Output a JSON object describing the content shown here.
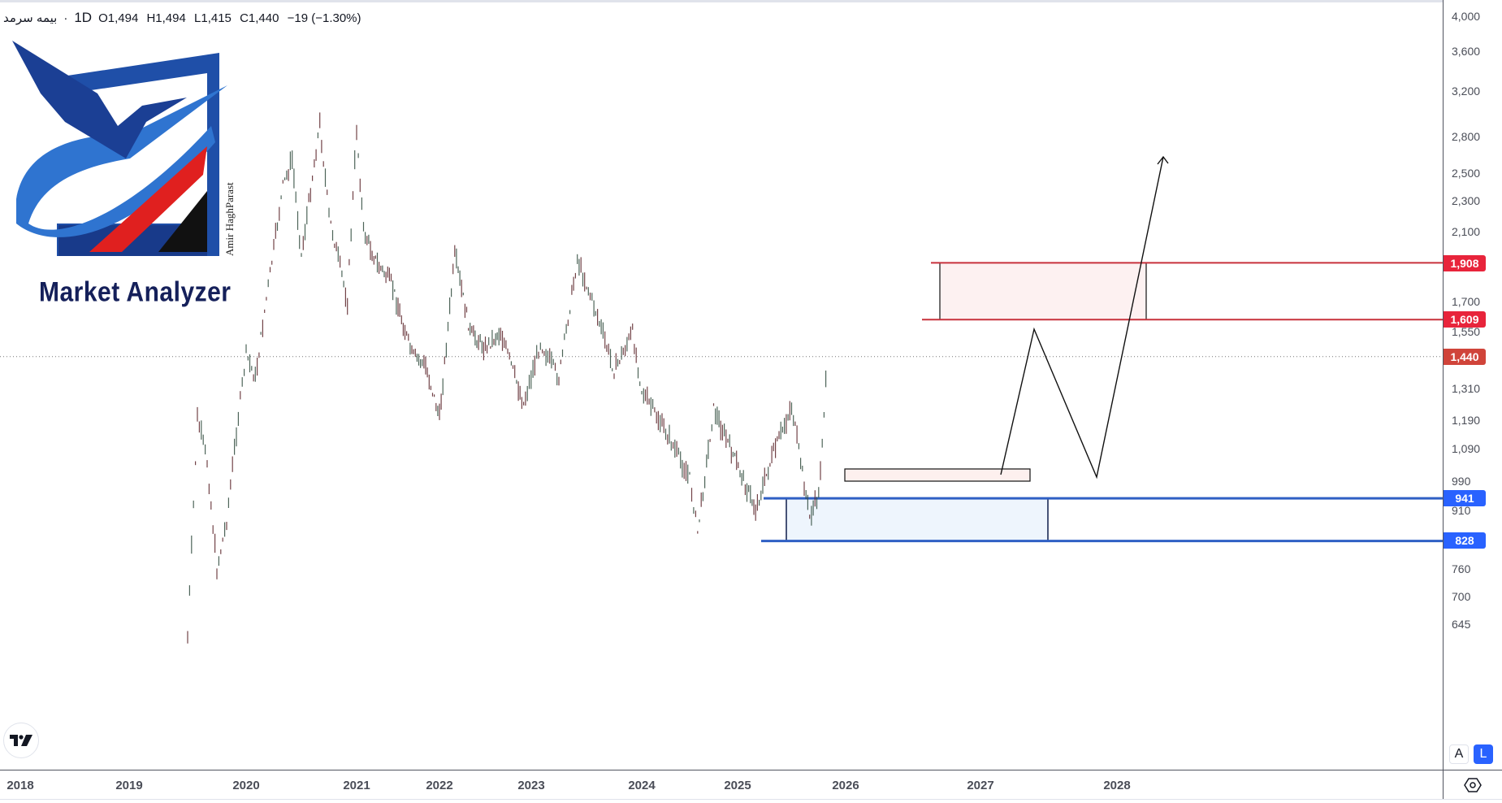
{
  "legend": {
    "symbol": "بیمه سرمد",
    "separator": "·",
    "timeframe": "1D",
    "open": "O1,494",
    "high": "H1,494",
    "low": "L1,415",
    "close": "C1,440",
    "change": "−19 (−1.30%)"
  },
  "logo": {
    "title": "Market Analyzer",
    "author": "Amir HaghParast"
  },
  "price_axis": {
    "ticks": [
      "4,000",
      "3,600",
      "3,200",
      "2,800",
      "2,500",
      "2,300",
      "2,100",
      "1,700",
      "1,550",
      "1,310",
      "1,190",
      "1,090",
      "990",
      "910",
      "760",
      "700",
      "645"
    ],
    "tags": [
      {
        "value": "1,908",
        "color": "#e8243b"
      },
      {
        "value": "1,609",
        "color": "#e8243b"
      },
      {
        "value": "1,440",
        "color": "#d0443a"
      },
      {
        "value": "941",
        "color": "#2962ff"
      },
      {
        "value": "828",
        "color": "#2962ff"
      }
    ],
    "scale_buttons": {
      "auto": "A",
      "log": "L"
    }
  },
  "time_axis": {
    "years": [
      "2018",
      "2019",
      "2020",
      "2021",
      "2022",
      "2023",
      "2024",
      "2025",
      "2026",
      "2027",
      "2028"
    ]
  },
  "icons": {
    "settings": "gear-icon",
    "tradingview": "tradingview-logo-icon"
  },
  "colors": {
    "resistance": "#c8323c",
    "support": "#2f5fc4",
    "up_candle": "#2e4a3c",
    "down_candle": "#5a2228",
    "last_price_tag": "#d0443a",
    "accent": "#2962ff"
  },
  "chart_data": {
    "type": "candlestick",
    "title": "بیمه سرمد · 1D",
    "xlabel": "",
    "ylabel": "",
    "scale": "log",
    "ylim": [
      610,
      4200
    ],
    "last": {
      "open": 1494,
      "high": 1494,
      "low": 1415,
      "close": 1440,
      "change": -19,
      "change_pct": -1.3
    },
    "approx_price_path": [
      {
        "date": "2019-07",
        "price": 620
      },
      {
        "date": "2019-08",
        "price": 1200
      },
      {
        "date": "2019-09",
        "price": 1050
      },
      {
        "date": "2019-10",
        "price": 760
      },
      {
        "date": "2019-11",
        "price": 880
      },
      {
        "date": "2019-12",
        "price": 1150
      },
      {
        "date": "2020-01",
        "price": 1450
      },
      {
        "date": "2020-02",
        "price": 1350
      },
      {
        "date": "2020-03",
        "price": 1650
      },
      {
        "date": "2020-05",
        "price": 2400
      },
      {
        "date": "2020-06",
        "price": 2600
      },
      {
        "date": "2020-07",
        "price": 1950
      },
      {
        "date": "2020-09",
        "price": 2900
      },
      {
        "date": "2020-10",
        "price": 2200
      },
      {
        "date": "2020-12",
        "price": 1700
      },
      {
        "date": "2021-01",
        "price": 2850
      },
      {
        "date": "2021-02",
        "price": 2100
      },
      {
        "date": "2021-04",
        "price": 1900
      },
      {
        "date": "2021-06",
        "price": 1800
      },
      {
        "date": "2021-09",
        "price": 1450
      },
      {
        "date": "2021-11",
        "price": 1400
      },
      {
        "date": "2022-01",
        "price": 1200
      },
      {
        "date": "2022-03",
        "price": 1950
      },
      {
        "date": "2022-05",
        "price": 1550
      },
      {
        "date": "2022-07",
        "price": 1480
      },
      {
        "date": "2022-09",
        "price": 1550
      },
      {
        "date": "2022-12",
        "price": 1250
      },
      {
        "date": "2023-02",
        "price": 1500
      },
      {
        "date": "2023-04",
        "price": 1350
      },
      {
        "date": "2023-06",
        "price": 1930
      },
      {
        "date": "2023-08",
        "price": 1650
      },
      {
        "date": "2023-10",
        "price": 1380
      },
      {
        "date": "2023-12",
        "price": 1550
      },
      {
        "date": "2024-01",
        "price": 1300
      },
      {
        "date": "2024-04",
        "price": 1150
      },
      {
        "date": "2024-07",
        "price": 1000
      },
      {
        "date": "2024-08",
        "price": 850
      },
      {
        "date": "2024-10",
        "price": 1230
      },
      {
        "date": "2024-12",
        "price": 1100
      },
      {
        "date": "2025-03",
        "price": 910
      },
      {
        "date": "2025-05",
        "price": 1080
      },
      {
        "date": "2025-07",
        "price": 1240
      },
      {
        "date": "2025-09",
        "price": 890
      },
      {
        "date": "2025-10",
        "price": 950
      },
      {
        "date": "2025-11",
        "price": 1440
      }
    ],
    "annotations": {
      "resistance_zone": {
        "top": 1908,
        "bottom": 1609,
        "color": "#c8323c"
      },
      "support_zone": {
        "top": 941,
        "bottom": 828,
        "color": "#2f5fc4"
      },
      "breakout_box": {
        "top": 1260,
        "bottom": 1220
      },
      "projection_path": [
        {
          "date": "2026-03",
          "price": 1230
        },
        {
          "date": "2026-06",
          "price": 1820
        },
        {
          "date": "2026-09",
          "price": 1230
        },
        {
          "date": "2027-02",
          "price": 2850
        }
      ],
      "last_price_line": 1440
    }
  }
}
